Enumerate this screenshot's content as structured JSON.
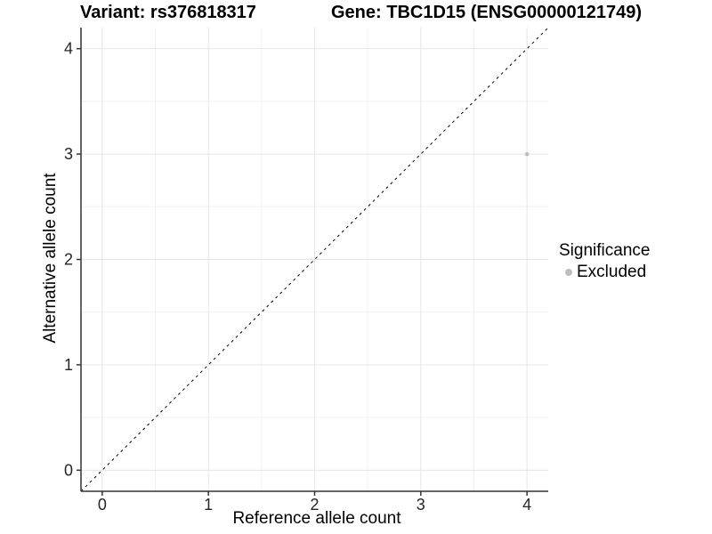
{
  "titles": {
    "variant": "Variant: rs376818317",
    "gene": "Gene: TBC1D15 (ENSG00000121749)"
  },
  "chart_data": {
    "type": "scatter",
    "xlabel": "Reference allele count",
    "ylabel": "Alternative allele count",
    "x_ticks": [
      0,
      1,
      2,
      3,
      4
    ],
    "y_ticks": [
      0,
      1,
      2,
      3,
      4
    ],
    "xlim": [
      -0.2,
      4.2
    ],
    "ylim": [
      -0.2,
      4.2
    ],
    "grid": "on",
    "points": [
      {
        "x": 4,
        "y": 3,
        "significance": "Excluded"
      }
    ],
    "identity_line": {
      "style": "dashed",
      "from": [
        -0.2,
        -0.2
      ],
      "to": [
        4.2,
        4.2
      ],
      "color": "#000000"
    },
    "legend": {
      "position": "right",
      "title": "Significance",
      "entries": [
        {
          "label": "Excluded",
          "color": "#bebebe"
        }
      ]
    },
    "colors": {
      "point_excluded": "#bebebe",
      "grid_major": "#e6e6e6",
      "grid_minor": "#f2f2f2",
      "axis_line": "#343434",
      "tick_text": "#262626"
    }
  }
}
